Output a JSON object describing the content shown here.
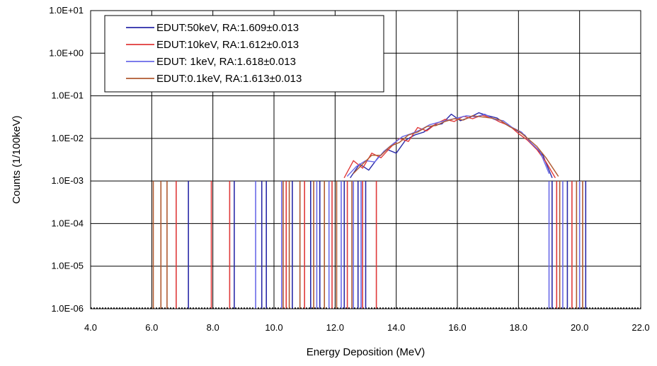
{
  "chart_data": {
    "type": "line",
    "xlabel": "Energy Deposition (MeV)",
    "ylabel": "Counts (1/100keV)",
    "xlim": [
      4.0,
      22.0
    ],
    "ylim_log10": [
      -6,
      1
    ],
    "y_scale": "log",
    "grid": true,
    "legend_position": "top-left",
    "x_tick_labels": [
      "4.0",
      "6.0",
      "8.0",
      "10.0",
      "12.0",
      "14.0",
      "16.0",
      "18.0",
      "20.0",
      "22.0"
    ],
    "y_tick_labels": [
      "1.0E+01",
      "1.0E+00",
      "1.0E-01",
      "1.0E-02",
      "1.0E-03",
      "1.0E-04",
      "1.0E-05",
      "1.0E-06"
    ],
    "series": [
      {
        "name": "EDUT:50keV, RA:1.609±0.013",
        "color": "#2a2aa8",
        "spikes_low": [
          7.2,
          8.7,
          9.6,
          9.75,
          10.6,
          11.2,
          11.5,
          12.3,
          12.75,
          13.0
        ],
        "spikes_high": [
          19.1,
          19.6,
          20.2
        ],
        "bulk": [
          [
            12.5,
            0.0012
          ],
          [
            12.8,
            0.0025
          ],
          [
            13.1,
            0.0018
          ],
          [
            13.4,
            0.0035
          ],
          [
            13.7,
            0.0055
          ],
          [
            14.0,
            0.0045
          ],
          [
            14.3,
            0.009
          ],
          [
            14.6,
            0.012
          ],
          [
            14.9,
            0.014
          ],
          [
            15.2,
            0.02
          ],
          [
            15.5,
            0.022
          ],
          [
            15.8,
            0.037
          ],
          [
            16.1,
            0.026
          ],
          [
            16.4,
            0.031
          ],
          [
            16.7,
            0.04
          ],
          [
            17.0,
            0.034
          ],
          [
            17.3,
            0.03
          ],
          [
            17.6,
            0.021
          ],
          [
            17.9,
            0.016
          ],
          [
            18.2,
            0.012
          ],
          [
            18.5,
            0.0065
          ],
          [
            18.8,
            0.004
          ],
          [
            19.1,
            0.0012
          ]
        ]
      },
      {
        "name": "EDUT:10keV, RA:1.612±0.013",
        "color": "#e03a3a",
        "spikes_low": [
          6.8,
          7.95,
          8.55,
          10.4,
          11.0,
          11.9,
          12.4,
          12.9,
          13.35
        ],
        "spikes_high": [
          19.25,
          19.75
        ],
        "bulk": [
          [
            12.3,
            0.0012
          ],
          [
            12.6,
            0.003
          ],
          [
            12.9,
            0.002
          ],
          [
            13.2,
            0.0045
          ],
          [
            13.5,
            0.0035
          ],
          [
            13.8,
            0.006
          ],
          [
            14.1,
            0.01
          ],
          [
            14.4,
            0.0085
          ],
          [
            14.7,
            0.018
          ],
          [
            15.0,
            0.015
          ],
          [
            15.3,
            0.022
          ],
          [
            15.6,
            0.028
          ],
          [
            15.9,
            0.025
          ],
          [
            16.2,
            0.033
          ],
          [
            16.5,
            0.029
          ],
          [
            16.8,
            0.035
          ],
          [
            17.1,
            0.031
          ],
          [
            17.4,
            0.024
          ],
          [
            17.7,
            0.02
          ],
          [
            18.0,
            0.013
          ],
          [
            18.3,
            0.009
          ],
          [
            18.6,
            0.0055
          ],
          [
            18.9,
            0.0028
          ],
          [
            19.2,
            0.0012
          ]
        ]
      },
      {
        "name": "EDUT:  1keV, RA:1.618±0.013",
        "color": "#6a6ae8",
        "spikes_low": [
          9.4,
          10.25,
          11.4,
          11.8,
          12.2,
          12.6,
          12.85
        ],
        "spikes_high": [
          19.0,
          19.45,
          20.0
        ],
        "bulk": [
          [
            12.4,
            0.0013
          ],
          [
            12.7,
            0.0022
          ],
          [
            13.0,
            0.003
          ],
          [
            13.3,
            0.0028
          ],
          [
            13.6,
            0.005
          ],
          [
            13.9,
            0.0075
          ],
          [
            14.2,
            0.011
          ],
          [
            14.5,
            0.013
          ],
          [
            14.8,
            0.016
          ],
          [
            15.1,
            0.021
          ],
          [
            15.4,
            0.024
          ],
          [
            15.7,
            0.027
          ],
          [
            16.0,
            0.03
          ],
          [
            16.3,
            0.034
          ],
          [
            16.6,
            0.032
          ],
          [
            16.9,
            0.037
          ],
          [
            17.2,
            0.028
          ],
          [
            17.5,
            0.026
          ],
          [
            17.8,
            0.018
          ],
          [
            18.1,
            0.014
          ],
          [
            18.4,
            0.008
          ],
          [
            18.7,
            0.005
          ],
          [
            19.0,
            0.0015
          ]
        ]
      },
      {
        "name": "EDUT:0.1keV, RA:1.613±0.013",
        "color": "#b05a30",
        "spikes_low": [
          6.05,
          6.3,
          6.5,
          10.3,
          10.5,
          10.85,
          11.3,
          11.65,
          12.05,
          12.55
        ],
        "spikes_high": [
          19.35,
          19.9,
          20.1
        ],
        "bulk": [
          [
            12.6,
            0.0015
          ],
          [
            12.9,
            0.0025
          ],
          [
            13.2,
            0.004
          ],
          [
            13.5,
            0.004
          ],
          [
            13.8,
            0.0065
          ],
          [
            14.1,
            0.008
          ],
          [
            14.4,
            0.012
          ],
          [
            14.7,
            0.014
          ],
          [
            15.0,
            0.019
          ],
          [
            15.3,
            0.02
          ],
          [
            15.6,
            0.025
          ],
          [
            15.9,
            0.029
          ],
          [
            16.2,
            0.027
          ],
          [
            16.5,
            0.034
          ],
          [
            16.8,
            0.032
          ],
          [
            17.1,
            0.03
          ],
          [
            17.4,
            0.027
          ],
          [
            17.7,
            0.019
          ],
          [
            18.0,
            0.015
          ],
          [
            18.3,
            0.01
          ],
          [
            18.6,
            0.0065
          ],
          [
            18.9,
            0.0035
          ],
          [
            19.3,
            0.0013
          ]
        ]
      }
    ]
  }
}
